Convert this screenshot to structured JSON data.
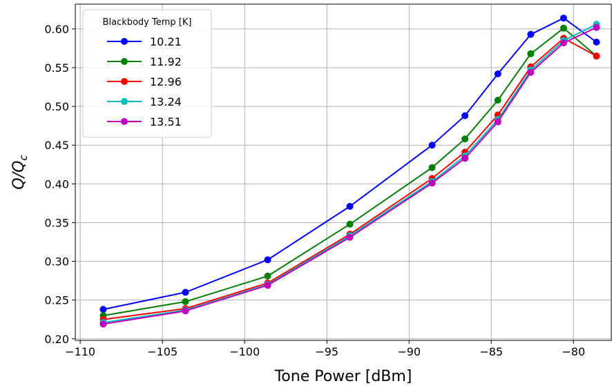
{
  "chart_data": {
    "type": "line",
    "xlabel": "Tone Power [dBm]",
    "ylabel_main": "Q/Q",
    "ylabel_sub": "c",
    "xlim": [
      -110.3,
      -77.7
    ],
    "ylim": [
      0.198,
      0.632
    ],
    "xticks": [
      -110,
      -105,
      -100,
      -95,
      -90,
      -85,
      -80
    ],
    "xtick_labels": [
      "−110",
      "−105",
      "−100",
      "−95",
      "−90",
      "−85",
      "−80"
    ],
    "yticks": [
      0.2,
      0.25,
      0.3,
      0.35,
      0.4,
      0.45,
      0.5,
      0.55,
      0.6
    ],
    "ytick_labels": [
      "0.20",
      "0.25",
      "0.30",
      "0.35",
      "0.40",
      "0.45",
      "0.50",
      "0.55",
      "0.60"
    ],
    "grid": true,
    "legend_title": "Blackbody Temp [K]",
    "legend_position": "top-left",
    "x": [
      -108.6,
      -103.6,
      -98.6,
      -93.6,
      -88.6,
      -86.6,
      -84.6,
      -82.6,
      -80.6,
      -78.6
    ],
    "series": [
      {
        "name": "10.21",
        "color": "#0000ff",
        "values": [
          0.238,
          0.26,
          0.302,
          0.371,
          0.45,
          0.488,
          0.542,
          0.593,
          0.614,
          0.583
        ]
      },
      {
        "name": "11.92",
        "color": "#008000",
        "values": [
          0.23,
          0.248,
          0.281,
          0.348,
          0.421,
          0.458,
          0.508,
          0.568,
          0.601,
          0.565
        ]
      },
      {
        "name": "12.96",
        "color": "#ff0000",
        "values": [
          0.225,
          0.239,
          0.272,
          0.335,
          0.407,
          0.441,
          0.489,
          0.551,
          0.588,
          0.565
        ]
      },
      {
        "name": "13.24",
        "color": "#00bfbf",
        "values": [
          0.221,
          0.237,
          0.27,
          0.333,
          0.403,
          0.436,
          0.483,
          0.547,
          0.585,
          0.606
        ]
      },
      {
        "name": "13.51",
        "color": "#bf00bf",
        "values": [
          0.219,
          0.236,
          0.269,
          0.331,
          0.401,
          0.433,
          0.48,
          0.544,
          0.582,
          0.602
        ]
      }
    ]
  }
}
